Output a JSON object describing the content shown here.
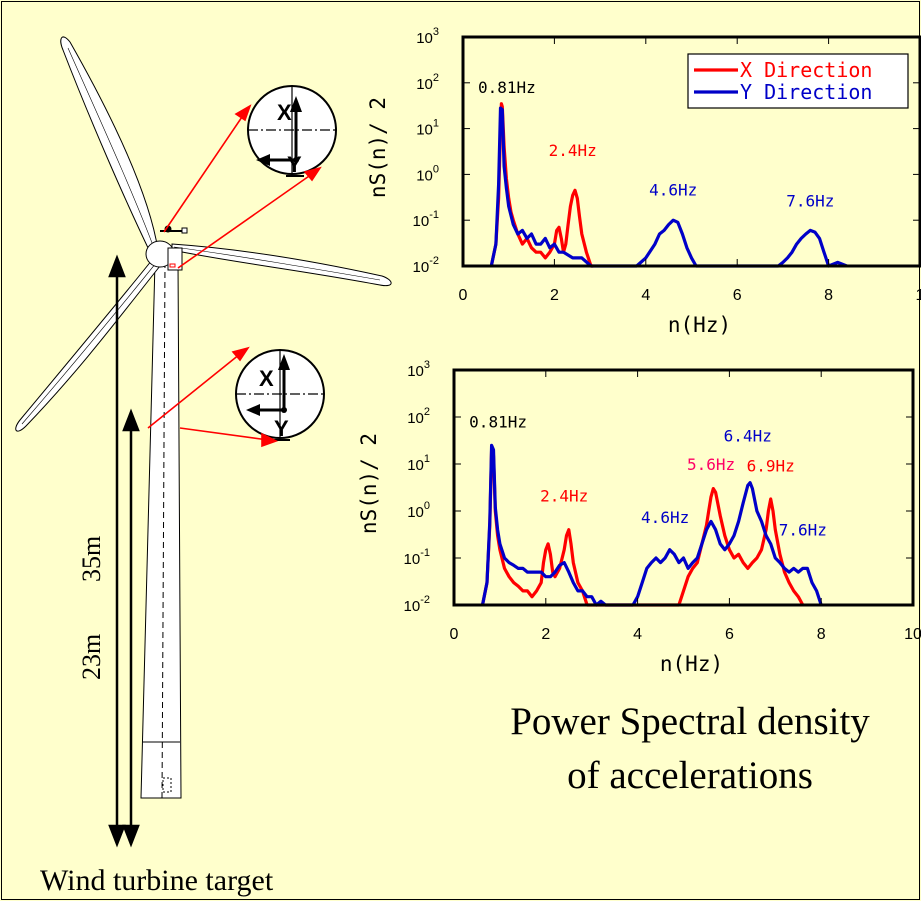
{
  "caption": {
    "line1": "Power Spectral density",
    "line2": "of accelerations"
  },
  "turbine": {
    "label": "Wind turbine target",
    "height_upper": "35m",
    "height_lower": "23m",
    "axis_x": "X",
    "axis_y": "Y"
  },
  "colors": {
    "background": "#ffffcc",
    "x_direction": "#ff0000",
    "y_direction": "#0000c8",
    "peak_magenta": "#ff0066"
  },
  "chart_data": [
    {
      "type": "line",
      "title": "",
      "xlabel": "n(Hz)",
      "ylabel": "nS(n)/  2",
      "xlim": [
        0,
        10
      ],
      "ylim": [
        0.01,
        1000
      ],
      "yscale": "log",
      "xticks": [
        "0",
        "2",
        "4",
        "6",
        "8",
        "1"
      ],
      "yticks": [
        {
          "base": "10",
          "exp": "-2"
        },
        {
          "base": "10",
          "exp": "-1"
        },
        {
          "base": "10",
          "exp": "0"
        },
        {
          "base": "10",
          "exp": "1"
        },
        {
          "base": "10",
          "exp": "2"
        },
        {
          "base": "10",
          "exp": "3"
        }
      ],
      "legend": {
        "position": "top-right",
        "entries": [
          {
            "name": "X Direction",
            "color": "#ff0000"
          },
          {
            "name": "Y Direction",
            "color": "#0000c8"
          }
        ]
      },
      "annotations": [
        {
          "text": "0.81Hz",
          "x": 0.81,
          "y": 60,
          "color": "#000000"
        },
        {
          "text": "2.4Hz",
          "x": 2.4,
          "y": 2.5,
          "color": "#ff0000"
        },
        {
          "text": "4.6Hz",
          "x": 4.6,
          "y": 0.35,
          "color": "#0000c8"
        },
        {
          "text": "7.6Hz",
          "x": 7.6,
          "y": 0.2,
          "color": "#0000c8"
        }
      ],
      "series": [
        {
          "name": "X Direction",
          "color": "#ff0000",
          "x": [
            0.62,
            0.72,
            0.78,
            0.82,
            0.84,
            0.86,
            0.9,
            0.95,
            1.0,
            1.05,
            1.1,
            1.2,
            1.3,
            1.4,
            1.5,
            1.6,
            1.7,
            1.8,
            1.9,
            2.0,
            2.05,
            2.1,
            2.15,
            2.2,
            2.25,
            2.3,
            2.35,
            2.4,
            2.45,
            2.5,
            2.55,
            2.6,
            2.7,
            2.8,
            2.85
          ],
          "y": [
            0.01,
            0.03,
            0.3,
            10,
            35,
            30,
            4,
            0.8,
            0.3,
            0.15,
            0.1,
            0.05,
            0.03,
            0.04,
            0.025,
            0.02,
            0.02,
            0.015,
            0.02,
            0.03,
            0.06,
            0.07,
            0.04,
            0.02,
            0.03,
            0.08,
            0.2,
            0.35,
            0.45,
            0.3,
            0.12,
            0.05,
            0.02,
            0.01,
            0.01
          ]
        },
        {
          "name": "Y Direction",
          "color": "#0000c8",
          "x": [
            0.62,
            0.72,
            0.78,
            0.82,
            0.86,
            0.9,
            0.95,
            1.0,
            1.1,
            1.2,
            1.3,
            1.4,
            1.5,
            1.6,
            1.7,
            1.8,
            1.9,
            2.0,
            2.1,
            2.2,
            2.4,
            2.6,
            2.8,
            3.0,
            3.2,
            3.3,
            3.6,
            3.8,
            4.0,
            4.2,
            4.3,
            4.4,
            4.5,
            4.6,
            4.7,
            4.8,
            4.9,
            5.0,
            5.1,
            5.2,
            5.3,
            6.9,
            7.0,
            7.1,
            7.2,
            7.3,
            7.4,
            7.5,
            7.6,
            7.7,
            7.8,
            7.9,
            8.0,
            8.2,
            8.4
          ],
          "y": [
            0.01,
            0.03,
            0.6,
            28,
            26,
            1.5,
            0.5,
            0.2,
            0.08,
            0.05,
            0.06,
            0.04,
            0.05,
            0.03,
            0.03,
            0.04,
            0.025,
            0.03,
            0.02,
            0.02,
            0.015,
            0.015,
            0.01,
            0.01,
            0.01,
            0.01,
            0.01,
            0.01,
            0.015,
            0.03,
            0.05,
            0.06,
            0.08,
            0.1,
            0.09,
            0.05,
            0.025,
            0.015,
            0.01,
            0.01,
            0.01,
            0.01,
            0.012,
            0.015,
            0.02,
            0.03,
            0.04,
            0.05,
            0.06,
            0.055,
            0.04,
            0.02,
            0.01,
            0.012,
            0.01
          ]
        }
      ]
    },
    {
      "type": "line",
      "title": "",
      "xlabel": "n(Hz)",
      "ylabel": "nS(n)/  2",
      "xlim": [
        0,
        10
      ],
      "ylim": [
        0.01,
        1000
      ],
      "yscale": "log",
      "xticks": [
        "0",
        "2",
        "4",
        "6",
        "8",
        "10"
      ],
      "yticks": [
        {
          "base": "10",
          "exp": "-2"
        },
        {
          "base": "10",
          "exp": "-1"
        },
        {
          "base": "10",
          "exp": "0"
        },
        {
          "base": "10",
          "exp": "1"
        },
        {
          "base": "10",
          "exp": "2"
        },
        {
          "base": "10",
          "exp": "3"
        }
      ],
      "annotations": [
        {
          "text": "0.81Hz",
          "x": 0.81,
          "y": 60,
          "color": "#000000"
        },
        {
          "text": "2.4Hz",
          "x": 2.4,
          "y": 1.6,
          "color": "#ff0000"
        },
        {
          "text": "4.6Hz",
          "x": 4.6,
          "y": 0.55,
          "color": "#0000c8"
        },
        {
          "text": "5.6Hz",
          "x": 5.6,
          "y": 7.5,
          "color": "#ff0066"
        },
        {
          "text": "6.4Hz",
          "x": 6.4,
          "y": 30,
          "color": "#0000c8"
        },
        {
          "text": "6.9Hz",
          "x": 6.9,
          "y": 7,
          "color": "#ff0000"
        },
        {
          "text": "7.6Hz",
          "x": 7.6,
          "y": 0.3,
          "color": "#0000c8"
        }
      ],
      "series": [
        {
          "name": "X Direction",
          "color": "#ff0000",
          "x": [
            0.62,
            0.72,
            0.78,
            0.82,
            0.86,
            0.9,
            0.95,
            1.0,
            1.1,
            1.2,
            1.3,
            1.4,
            1.5,
            1.6,
            1.7,
            1.8,
            1.9,
            1.95,
            2.0,
            2.05,
            2.1,
            2.15,
            2.2,
            2.3,
            2.4,
            2.45,
            2.5,
            2.55,
            2.6,
            2.7,
            2.8,
            2.9,
            3.0,
            4.15,
            4.3,
            4.5,
            4.7,
            4.9,
            5.0,
            5.1,
            5.2,
            5.3,
            5.4,
            5.5,
            5.55,
            5.6,
            5.65,
            5.7,
            5.8,
            5.9,
            6.0,
            6.1,
            6.2,
            6.3,
            6.4,
            6.5,
            6.6,
            6.7,
            6.8,
            6.85,
            6.9,
            6.95,
            7.0,
            7.1,
            7.2,
            7.3,
            7.4,
            7.5,
            7.6
          ],
          "y": [
            0.01,
            0.03,
            0.5,
            20,
            15,
            1,
            0.3,
            0.15,
            0.06,
            0.04,
            0.03,
            0.025,
            0.02,
            0.02,
            0.015,
            0.02,
            0.03,
            0.08,
            0.15,
            0.2,
            0.12,
            0.05,
            0.04,
            0.06,
            0.15,
            0.3,
            0.4,
            0.2,
            0.08,
            0.03,
            0.02,
            0.01,
            0.01,
            0.01,
            0.01,
            0.01,
            0.01,
            0.01,
            0.02,
            0.04,
            0.06,
            0.08,
            0.2,
            0.5,
            1.0,
            2.0,
            3.0,
            2.5,
            0.8,
            0.3,
            0.15,
            0.1,
            0.12,
            0.08,
            0.06,
            0.08,
            0.1,
            0.15,
            0.4,
            1.0,
            1.8,
            1.0,
            0.4,
            0.12,
            0.05,
            0.03,
            0.02,
            0.015,
            0.01
          ]
        },
        {
          "name": "Y Direction",
          "color": "#0000c8",
          "x": [
            0.62,
            0.72,
            0.78,
            0.82,
            0.86,
            0.9,
            0.95,
            1.0,
            1.1,
            1.2,
            1.3,
            1.4,
            1.5,
            1.6,
            1.7,
            1.8,
            1.9,
            2.0,
            2.1,
            2.2,
            2.3,
            2.4,
            2.5,
            2.6,
            2.7,
            2.8,
            2.9,
            3.0,
            3.1,
            3.2,
            3.3,
            3.4,
            3.9,
            4.0,
            4.1,
            4.2,
            4.3,
            4.4,
            4.5,
            4.6,
            4.7,
            4.8,
            4.9,
            5.0,
            5.1,
            5.2,
            5.3,
            5.4,
            5.5,
            5.6,
            5.7,
            5.8,
            5.9,
            6.0,
            6.1,
            6.2,
            6.3,
            6.4,
            6.45,
            6.5,
            6.6,
            6.7,
            6.8,
            6.9,
            7.0,
            7.1,
            7.2,
            7.3,
            7.4,
            7.5,
            7.6,
            7.7,
            7.8,
            7.9,
            8.0
          ],
          "y": [
            0.01,
            0.03,
            0.6,
            25,
            20,
            1.2,
            0.4,
            0.2,
            0.1,
            0.08,
            0.07,
            0.06,
            0.06,
            0.05,
            0.05,
            0.05,
            0.05,
            0.04,
            0.04,
            0.05,
            0.07,
            0.08,
            0.05,
            0.03,
            0.02,
            0.02,
            0.015,
            0.015,
            0.01,
            0.012,
            0.01,
            0.01,
            0.01,
            0.015,
            0.03,
            0.06,
            0.08,
            0.1,
            0.08,
            0.1,
            0.15,
            0.12,
            0.08,
            0.1,
            0.06,
            0.08,
            0.1,
            0.2,
            0.4,
            0.6,
            0.4,
            0.2,
            0.15,
            0.2,
            0.3,
            0.6,
            1.5,
            3.5,
            4.0,
            3.0,
            1.0,
            0.6,
            0.3,
            0.2,
            0.1,
            0.08,
            0.06,
            0.05,
            0.06,
            0.05,
            0.06,
            0.06,
            0.03,
            0.02,
            0.01
          ]
        }
      ]
    }
  ]
}
